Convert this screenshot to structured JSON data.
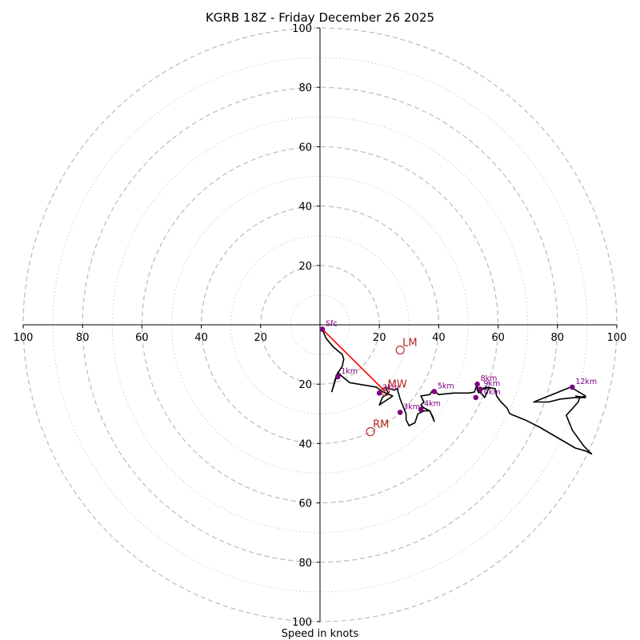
{
  "chart_data": {
    "type": "hodograph",
    "title": "KGRB 18Z - Friday December 26 2025",
    "xlabel": "Speed in knots",
    "max_speed": 100,
    "major_rings": [
      20,
      40,
      60,
      80,
      100
    ],
    "minor_rings": [
      10,
      30,
      50,
      70,
      90
    ],
    "x_tick_labels": [
      "100",
      "80",
      "60",
      "40",
      "20",
      "20",
      "40",
      "60",
      "80",
      "100"
    ],
    "x_tick_values": [
      -100,
      -80,
      -60,
      -40,
      -20,
      20,
      40,
      60,
      80,
      100
    ],
    "y_tick_labels": [
      "100",
      "80",
      "60",
      "40",
      "20",
      "20",
      "40",
      "60",
      "80",
      "100"
    ],
    "y_tick_values": [
      100,
      80,
      60,
      40,
      20,
      -20,
      -40,
      -60,
      -80,
      -100
    ],
    "trace": [
      [
        0.8,
        -1.5
      ],
      [
        2,
        -4.5
      ],
      [
        4.5,
        -7.5
      ],
      [
        7.5,
        -10
      ],
      [
        8,
        -11.5
      ],
      [
        7.5,
        -14
      ],
      [
        6.5,
        -15.5
      ],
      [
        5.5,
        -17
      ],
      [
        4,
        -22.5
      ],
      [
        6,
        -16
      ],
      [
        7,
        -17
      ],
      [
        10,
        -19.5
      ],
      [
        19,
        -21
      ],
      [
        21,
        -22.5
      ],
      [
        24.5,
        -24
      ],
      [
        20,
        -27
      ],
      [
        21,
        -24.5
      ],
      [
        23,
        -23
      ],
      [
        22,
        -21
      ],
      [
        25,
        -22
      ],
      [
        26,
        -21.5
      ],
      [
        27,
        -25
      ],
      [
        29,
        -30
      ],
      [
        29,
        -32
      ],
      [
        30,
        -34
      ],
      [
        32,
        -33
      ],
      [
        33,
        -30
      ],
      [
        35,
        -29
      ],
      [
        37,
        -29
      ],
      [
        38,
        -31
      ],
      [
        38.5,
        -32.5
      ],
      [
        37,
        -29
      ],
      [
        35,
        -28
      ],
      [
        34,
        -27
      ],
      [
        35,
        -26
      ],
      [
        34,
        -24
      ],
      [
        37,
        -23.5
      ],
      [
        38,
        -22
      ],
      [
        40,
        -23.5
      ],
      [
        45,
        -23
      ],
      [
        50,
        -23
      ],
      [
        52,
        -22.7
      ],
      [
        53,
        -20
      ],
      [
        53,
        -22
      ],
      [
        53.5,
        -23
      ],
      [
        54,
        -22
      ],
      [
        57,
        -21
      ],
      [
        55.5,
        -24.5
      ],
      [
        53.5,
        -22
      ],
      [
        56,
        -21
      ],
      [
        59,
        -21.5
      ],
      [
        59.5,
        -24
      ],
      [
        61,
        -26
      ],
      [
        63,
        -28
      ],
      [
        64,
        -30
      ],
      [
        69,
        -32
      ],
      [
        74,
        -34.5
      ],
      [
        86,
        -41.5
      ],
      [
        89.5,
        -42.5
      ],
      [
        91.5,
        -43.5
      ],
      [
        89,
        -41
      ],
      [
        85,
        -35.5
      ],
      [
        83,
        -30.5
      ],
      [
        87,
        -26
      ],
      [
        87.5,
        -24.5
      ],
      [
        89.5,
        -24
      ],
      [
        84.5,
        -21
      ],
      [
        72,
        -26
      ],
      [
        77,
        -26
      ],
      [
        81,
        -25
      ],
      [
        86,
        -24.5
      ],
      [
        89.5,
        -24.5
      ],
      [
        86,
        -24
      ]
    ],
    "height_markers": [
      {
        "label": "Sfc",
        "u": 0.8,
        "v": -1.5
      },
      {
        "label": "1km",
        "u": 6,
        "v": -17.5
      },
      {
        "label": "2km",
        "u": 20,
        "v": -23
      },
      {
        "label": "3km",
        "u": 27,
        "v": -29.5
      },
      {
        "label": "4km",
        "u": 34,
        "v": -28.5
      },
      {
        "label": "5km",
        "u": 38.5,
        "v": -22.5
      },
      {
        "label": "8km",
        "u": 53,
        "v": -20
      },
      {
        "label": "9km",
        "u": 54,
        "v": -21.7
      },
      {
        "label": "10km",
        "u": 52.5,
        "v": -24.5
      },
      {
        "label": "12km",
        "u": 85,
        "v": -21
      }
    ],
    "storm_motion": [
      {
        "label": "LM",
        "u": 27,
        "v": -8.5
      },
      {
        "label": "MW",
        "u": 22,
        "v": -22.5
      },
      {
        "label": "RM",
        "u": 17,
        "v": -36
      }
    ],
    "shear_vector": {
      "from": [
        0.8,
        -1.5
      ],
      "to": [
        22,
        -22.5
      ]
    },
    "colors": {
      "trace": "#000000",
      "height_markers": "#800080",
      "storm_motion": "#b22222",
      "shear_vector": "#ff0000",
      "rings": "#bbbbbb"
    }
  }
}
